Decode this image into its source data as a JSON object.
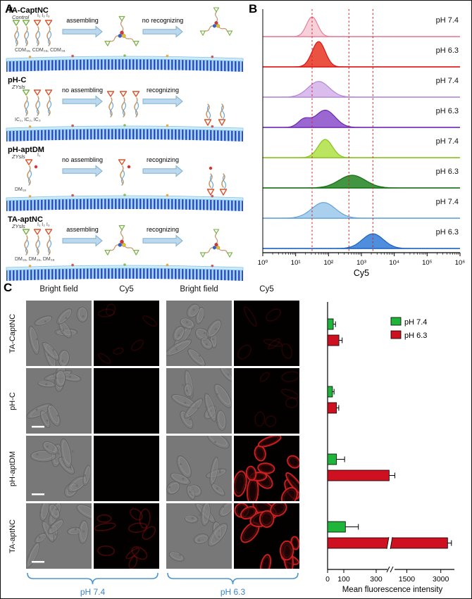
{
  "figure": {
    "panel_a_label": "A",
    "panel_b_label": "B",
    "panel_c_label": "C"
  },
  "panel_a": {
    "rows": [
      {
        "name": "TA-CaptNC",
        "tag": "Control",
        "units": "CDM₁ₐ, CDM₂ₐ, CDM₃ₐ",
        "inits": "I₁  I₂  I₃",
        "arrow1": "assembling",
        "arrow2": "no recognizing",
        "left": "units",
        "mid": "star",
        "right": "star-free"
      },
      {
        "name": "pH-C",
        "tag": "ZYsls",
        "units": "IC₁, IC₂, IC₃",
        "inits": "",
        "arrow1": "no assembling",
        "arrow2": "recognizing",
        "left": "units",
        "mid": "units",
        "right": "bound-units"
      },
      {
        "name": "pH-aptDM",
        "tag": "ZYsls",
        "units": "DM₁ₐ",
        "inits": "I₁",
        "arrow1": "no assembling",
        "arrow2": "recognizing",
        "left": "single",
        "mid": "single",
        "right": "bound-single"
      },
      {
        "name": "TA-aptNC",
        "tag": "ZYsls",
        "units": "DM₁ₐ, DM₂ₐ, DM₃ₐ",
        "inits": "I₁  I₂  I₃",
        "arrow1": "assembling",
        "arrow2": "recognizing",
        "left": "units",
        "mid": "star",
        "right": "star-bound"
      }
    ]
  },
  "panel_c": {
    "col_headers": [
      "Bright field",
      "Cy5",
      "Bright field",
      "Cy5"
    ],
    "row_labels": [
      "TA-CaptNC",
      "pH-C",
      "pH-aptDM",
      "TA-aptNC"
    ],
    "group_left": "pH 7.4",
    "group_right": "pH 6.3",
    "cy5_levels": [
      [
        "vfaint",
        "vfaint"
      ],
      [
        "none",
        "vfaint"
      ],
      [
        "none",
        "strong"
      ],
      [
        "faint",
        "strong"
      ]
    ]
  },
  "chart_data": [
    {
      "type": "area",
      "name": "flow-cytometry-histograms",
      "xlabel": "Cy5",
      "x_scale": "log10",
      "xlim_log": [
        0,
        6
      ],
      "x_ticks": [
        "10⁰",
        "10¹",
        "10²",
        "10³",
        "10⁴",
        "10⁵",
        "10⁶"
      ],
      "gate_lines_log": [
        1.5,
        2.62,
        3.35
      ],
      "gate_line_color": "#d02020",
      "series": [
        {
          "label": "pH 7.4",
          "color": "#e87e98",
          "fill": "#f6ccd6",
          "peak_log": 1.5,
          "sigma_log": 0.17,
          "height": 0.78
        },
        {
          "label": "pH 6.3",
          "color": "#dd1111",
          "fill": "#e8402e",
          "peak_log": 1.7,
          "sigma_log": 0.2,
          "height": 1.0
        },
        {
          "label": "pH 7.4",
          "color": "#b488d8",
          "fill": "#d6b6ea",
          "peak_log": 1.7,
          "sigma_log": 0.32,
          "height": 0.62
        },
        {
          "label": "pH 6.3",
          "color": "#6a28b8",
          "fill": "#9058cc",
          "peak_log": 1.9,
          "sigma_log": 0.3,
          "height": 0.68,
          "peak2_log": 1.25,
          "sigma2_log": 0.18,
          "height2": 0.3
        },
        {
          "label": "pH 7.4",
          "color": "#85c41e",
          "fill": "#b4e24e",
          "peak_log": 1.9,
          "sigma_log": 0.22,
          "height": 0.72
        },
        {
          "label": "pH 6.3",
          "color": "#127012",
          "fill": "#2d8a2d",
          "peak_log": 2.72,
          "sigma_log": 0.4,
          "height": 0.5
        },
        {
          "label": "pH 7.4",
          "color": "#64a2d8",
          "fill": "#a2cbec",
          "peak_log": 1.85,
          "sigma_log": 0.36,
          "height": 0.62
        },
        {
          "label": "pH 6.3",
          "color": "#1b62c4",
          "fill": "#3c82d8",
          "peak_log": 3.35,
          "sigma_log": 0.32,
          "height": 0.58
        }
      ]
    },
    {
      "type": "bar",
      "name": "mean-fluorescence-intensity",
      "orientation": "horizontal",
      "xlabel": "Mean fluorescence intensity",
      "x_ticks": [
        0,
        100,
        300,
        1500,
        3000
      ],
      "axis_break_between": [
        450,
        1300
      ],
      "categories": [
        "TA-CaptNC",
        "pH-C",
        "pH-aptDM",
        "TA-aptNC"
      ],
      "legend": [
        {
          "label": "pH 7.4",
          "color": "#1eb53a"
        },
        {
          "label": "pH 6.3",
          "color": "#cf1020"
        }
      ],
      "series": [
        {
          "name": "pH 7.4",
          "color": "#1eb53a",
          "values": [
            35,
            30,
            55,
            110
          ],
          "errors": [
            14,
            10,
            50,
            80
          ]
        },
        {
          "name": "pH 6.3",
          "color": "#cf1020",
          "values": [
            70,
            55,
            380,
            3300
          ],
          "errors": [
            20,
            14,
            35,
            170
          ]
        }
      ]
    }
  ]
}
